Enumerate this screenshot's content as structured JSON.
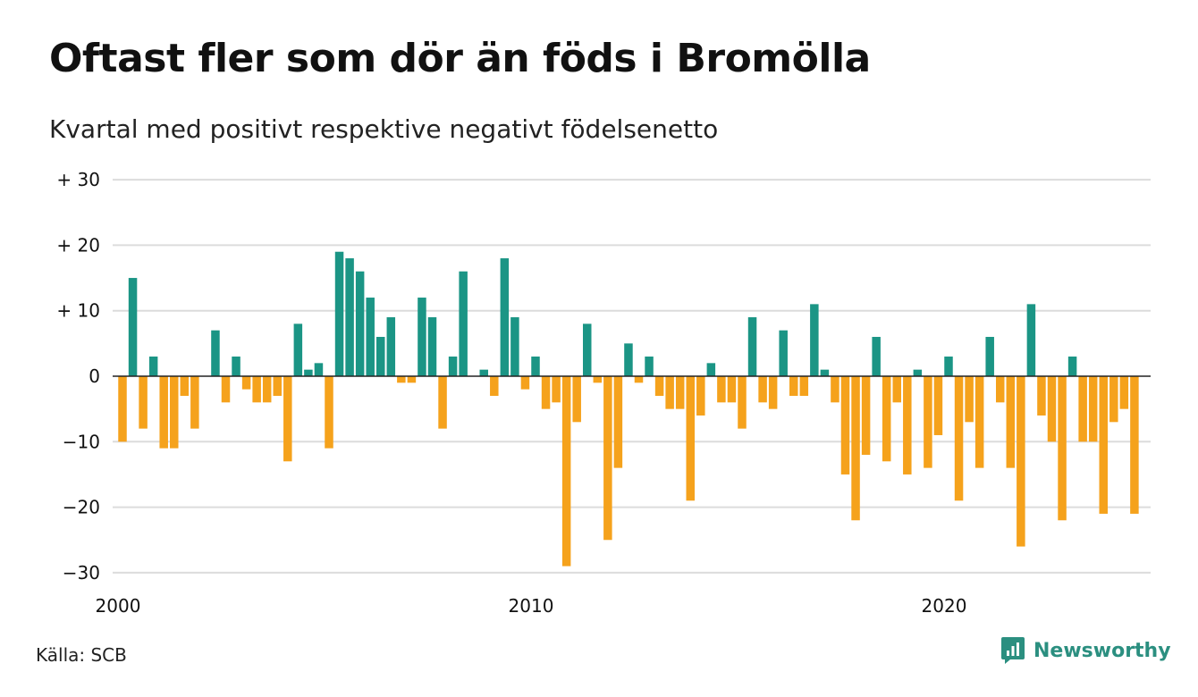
{
  "header": {
    "title": "Oftast fler som dör än föds i Bromölla",
    "subtitle": "Kvartal med positivt respektive negativt födelsenetto"
  },
  "footer": {
    "source": "Källa: SCB",
    "brand": "Newsworthy",
    "brand_icon": "newsworthy-logo-icon"
  },
  "colors": {
    "positive": "#1b9585",
    "negative": "#f5a21c",
    "grid": "#dcdcdc",
    "zero_line": "#222222",
    "brand": "#2b8f80"
  },
  "chart_data": {
    "type": "bar",
    "title": "Oftast fler som dör än föds i Bromölla",
    "subtitle": "Kvartal med positivt respektive negativt födelsenetto",
    "x_start": "2000Q1",
    "x_ticks": [
      {
        "label": "2000",
        "quarter_index": 0
      },
      {
        "label": "2010",
        "quarter_index": 40
      },
      {
        "label": "2020",
        "quarter_index": 80
      }
    ],
    "y_ticks": [
      {
        "label": "+ 30",
        "value": 30
      },
      {
        "label": "+ 20",
        "value": 20
      },
      {
        "label": "+ 10",
        "value": 10
      },
      {
        "label": "0",
        "value": 0
      },
      {
        "label": "−10",
        "value": -10
      },
      {
        "label": "−20",
        "value": -20
      },
      {
        "label": "−30",
        "value": -30
      }
    ],
    "ylim": [
      -30,
      30
    ],
    "grid": true,
    "values": [
      -10,
      15,
      -8,
      3,
      -11,
      -11,
      -3,
      -8,
      0,
      7,
      -4,
      3,
      -2,
      -4,
      -4,
      -3,
      -13,
      8,
      1,
      2,
      -11,
      19,
      18,
      16,
      12,
      6,
      9,
      -1,
      -1,
      12,
      9,
      -8,
      3,
      16,
      0,
      1,
      -3,
      18,
      9,
      -2,
      3,
      -5,
      -4,
      -29,
      -7,
      8,
      -1,
      -25,
      -14,
      5,
      -1,
      3,
      -3,
      -5,
      -5,
      -19,
      -6,
      2,
      -4,
      -4,
      -8,
      9,
      -4,
      -5,
      7,
      -3,
      -3,
      11,
      1,
      -4,
      -15,
      -22,
      -12,
      6,
      -13,
      -4,
      -15,
      1,
      -14,
      -9,
      3,
      -19,
      -7,
      -14,
      6,
      -4,
      -14,
      -26,
      11,
      -6,
      -10,
      -22,
      3,
      -10,
      -10,
      -21,
      -7,
      -5,
      -21
    ]
  }
}
